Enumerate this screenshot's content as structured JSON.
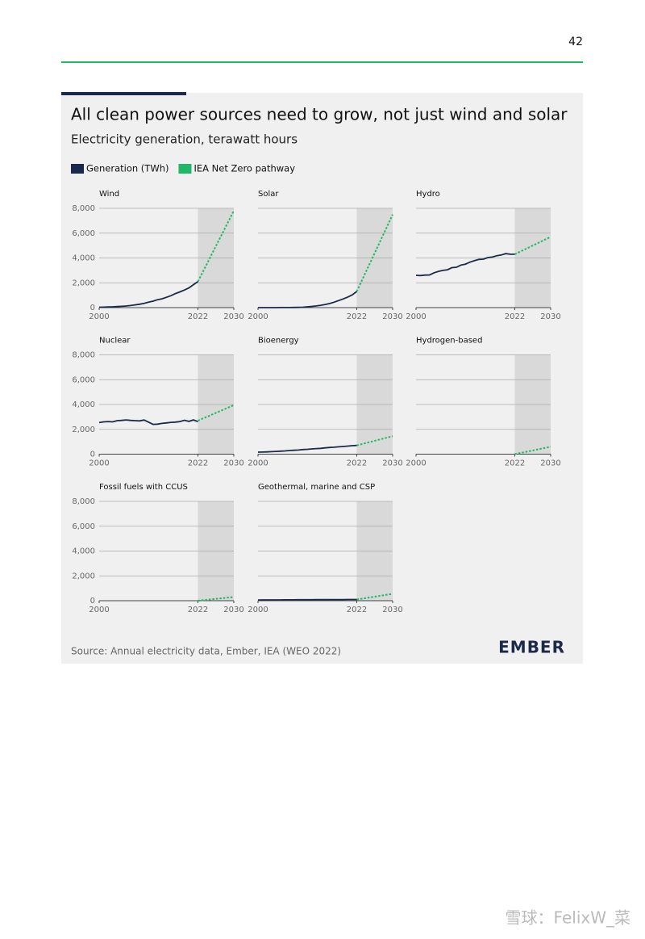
{
  "page_number": "42",
  "title": "All clean power sources need to grow, not just wind and solar",
  "subtitle": "Electricity generation, terawatt hours",
  "source": "Source: Annual electricity data, Ember, IEA (WEO 2022)",
  "logo": "EMBER",
  "watermark": "雪球：FelixW_菜",
  "chart_data": [
    {
      "type": "line",
      "title": "Wind",
      "xlim": [
        2000,
        2030
      ],
      "xticks": [
        2000,
        2022,
        2030
      ],
      "ylim": [
        0,
        8000
      ],
      "yticks": [
        0,
        {
          "value": 2000,
          "label": "2,000"
        },
        {
          "value": 4000,
          "label": "4,000"
        },
        {
          "value": 6000,
          "label": "6,000"
        },
        {
          "value": 8000,
          "label": "8,000"
        }
      ],
      "ytick_labels": true,
      "grid": true,
      "shaded_x": [
        2022,
        2030
      ],
      "series": [
        {
          "name": "Generation (TWh)",
          "color": "#1b2a4a",
          "x": [
            2000,
            2001,
            2002,
            2003,
            2004,
            2005,
            2006,
            2007,
            2008,
            2009,
            2010,
            2011,
            2012,
            2013,
            2014,
            2015,
            2016,
            2017,
            2018,
            2019,
            2020,
            2021,
            2022
          ],
          "values": [
            31,
            38,
            52,
            63,
            85,
            104,
            133,
            170,
            220,
            275,
            342,
            437,
            520,
            640,
            710,
            830,
            960,
            1130,
            1270,
            1420,
            1590,
            1850,
            2100
          ]
        },
        {
          "name": "IEA Net Zero pathway",
          "color": "#1fb866",
          "dashed": true,
          "x": [
            2022,
            2030
          ],
          "values": [
            2100,
            7800
          ]
        }
      ]
    },
    {
      "type": "line",
      "title": "Solar",
      "xlim": [
        2000,
        2030
      ],
      "xticks": [
        2000,
        2022,
        2030
      ],
      "ylim": [
        0,
        8000
      ],
      "yticks": [
        0,
        2000,
        4000,
        6000,
        8000
      ],
      "grid": true,
      "shaded_x": [
        2022,
        2030
      ],
      "series": [
        {
          "color": "#1b2a4a",
          "x": [
            2000,
            2001,
            2002,
            2003,
            2004,
            2005,
            2006,
            2007,
            2008,
            2009,
            2010,
            2011,
            2012,
            2013,
            2014,
            2015,
            2016,
            2017,
            2018,
            2019,
            2020,
            2021,
            2022
          ],
          "values": [
            1,
            1,
            2,
            3,
            3,
            4,
            5,
            8,
            12,
            20,
            32,
            63,
            100,
            135,
            190,
            255,
            330,
            445,
            575,
            700,
            850,
            1030,
            1300
          ]
        },
        {
          "color": "#1fb866",
          "dashed": true,
          "x": [
            2022,
            2030
          ],
          "values": [
            1300,
            7500
          ]
        }
      ]
    },
    {
      "type": "line",
      "title": "Hydro",
      "xlim": [
        2000,
        2030
      ],
      "xticks": [
        2000,
        2022,
        2030
      ],
      "ylim": [
        0,
        8000
      ],
      "yticks": [
        0,
        2000,
        4000,
        6000,
        8000
      ],
      "grid": true,
      "shaded_x": [
        2022,
        2030
      ],
      "series": [
        {
          "color": "#1b2a4a",
          "x": [
            2000,
            2001,
            2002,
            2003,
            2004,
            2005,
            2006,
            2007,
            2008,
            2009,
            2010,
            2011,
            2012,
            2013,
            2014,
            2015,
            2016,
            2017,
            2018,
            2019,
            2020,
            2021,
            2022
          ],
          "values": [
            2600,
            2580,
            2620,
            2630,
            2800,
            2920,
            3000,
            3050,
            3220,
            3250,
            3430,
            3500,
            3660,
            3780,
            3880,
            3900,
            4030,
            4070,
            4180,
            4240,
            4350,
            4300,
            4300
          ]
        },
        {
          "color": "#1fb866",
          "dashed": true,
          "x": [
            2022,
            2030
          ],
          "values": [
            4300,
            5700
          ]
        }
      ]
    },
    {
      "type": "line",
      "title": "Nuclear",
      "xlim": [
        2000,
        2030
      ],
      "xticks": [
        2000,
        2022,
        2030
      ],
      "ylim": [
        0,
        8000
      ],
      "yticks": [
        0,
        {
          "value": 2000,
          "label": "2,000"
        },
        {
          "value": 4000,
          "label": "4,000"
        },
        {
          "value": 6000,
          "label": "6,000"
        },
        {
          "value": 8000,
          "label": "8,000"
        }
      ],
      "ytick_labels": true,
      "grid": true,
      "shaded_x": [
        2022,
        2030
      ],
      "series": [
        {
          "color": "#1b2a4a",
          "x": [
            2000,
            2001,
            2002,
            2003,
            2004,
            2005,
            2006,
            2007,
            2008,
            2009,
            2010,
            2011,
            2012,
            2013,
            2014,
            2015,
            2016,
            2017,
            2018,
            2019,
            2020,
            2021,
            2022
          ],
          "values": [
            2540,
            2600,
            2630,
            2600,
            2700,
            2720,
            2760,
            2720,
            2700,
            2680,
            2750,
            2580,
            2400,
            2420,
            2480,
            2520,
            2560,
            2580,
            2630,
            2730,
            2640,
            2760,
            2620
          ]
        },
        {
          "color": "#1fb866",
          "dashed": true,
          "x": [
            2022,
            2030
          ],
          "values": [
            2700,
            3950
          ]
        }
      ]
    },
    {
      "type": "line",
      "title": "Bioenergy",
      "xlim": [
        2000,
        2030
      ],
      "xticks": [
        2000,
        2022,
        2030
      ],
      "ylim": [
        0,
        8000
      ],
      "yticks": [
        0,
        2000,
        4000,
        6000,
        8000
      ],
      "grid": true,
      "shaded_x": [
        2022,
        2030
      ],
      "series": [
        {
          "color": "#1b2a4a",
          "x": [
            2000,
            2001,
            2002,
            2003,
            2004,
            2005,
            2006,
            2007,
            2008,
            2009,
            2010,
            2011,
            2012,
            2013,
            2014,
            2015,
            2016,
            2017,
            2018,
            2019,
            2020,
            2021,
            2022
          ],
          "values": [
            160,
            170,
            180,
            200,
            220,
            240,
            260,
            290,
            310,
            330,
            370,
            390,
            420,
            450,
            470,
            510,
            540,
            560,
            590,
            620,
            650,
            680,
            700
          ]
        },
        {
          "color": "#1fb866",
          "dashed": true,
          "x": [
            2022,
            2030
          ],
          "values": [
            700,
            1450
          ]
        }
      ]
    },
    {
      "type": "line",
      "title": "Hydrogen-based",
      "xlim": [
        2000,
        2030
      ],
      "xticks": [
        2000,
        2022,
        2030
      ],
      "ylim": [
        0,
        8000
      ],
      "yticks": [
        0,
        2000,
        4000,
        6000,
        8000
      ],
      "grid": true,
      "shaded_x": [
        2022,
        2030
      ],
      "series": [
        {
          "color": "#1fb866",
          "dashed": true,
          "x": [
            2022,
            2030
          ],
          "values": [
            0,
            600
          ]
        }
      ]
    },
    {
      "type": "line",
      "title": "Fossil fuels with CCUS",
      "xlim": [
        2000,
        2030
      ],
      "xticks": [
        2000,
        2022,
        2030
      ],
      "ylim": [
        0,
        8000
      ],
      "yticks": [
        0,
        {
          "value": 2000,
          "label": "2,000"
        },
        {
          "value": 4000,
          "label": "4,000"
        },
        {
          "value": 6000,
          "label": "6,000"
        },
        {
          "value": 8000,
          "label": "8,000"
        }
      ],
      "ytick_labels": true,
      "grid": true,
      "shaded_x": [
        2022,
        2030
      ],
      "series": [
        {
          "color": "#1fb866",
          "dashed": true,
          "x": [
            2022,
            2030
          ],
          "values": [
            0,
            300
          ]
        }
      ]
    },
    {
      "type": "line",
      "title": "Geothermal, marine and CSP",
      "xlim": [
        2000,
        2030
      ],
      "xticks": [
        2000,
        2022,
        2030
      ],
      "ylim": [
        0,
        8000
      ],
      "yticks": [
        0,
        2000,
        4000,
        6000,
        8000
      ],
      "grid": true,
      "shaded_x": [
        2022,
        2030
      ],
      "series": [
        {
          "color": "#1b2a4a",
          "x": [
            2000,
            2001,
            2002,
            2003,
            2004,
            2005,
            2006,
            2007,
            2008,
            2009,
            2010,
            2011,
            2012,
            2013,
            2014,
            2015,
            2016,
            2017,
            2018,
            2019,
            2020,
            2021,
            2022
          ],
          "values": [
            60,
            62,
            63,
            64,
            66,
            68,
            70,
            72,
            73,
            75,
            77,
            79,
            80,
            82,
            84,
            86,
            88,
            90,
            92,
            94,
            96,
            98,
            100
          ]
        },
        {
          "color": "#1fb866",
          "dashed": true,
          "x": [
            2022,
            2030
          ],
          "values": [
            100,
            550
          ]
        }
      ]
    }
  ]
}
